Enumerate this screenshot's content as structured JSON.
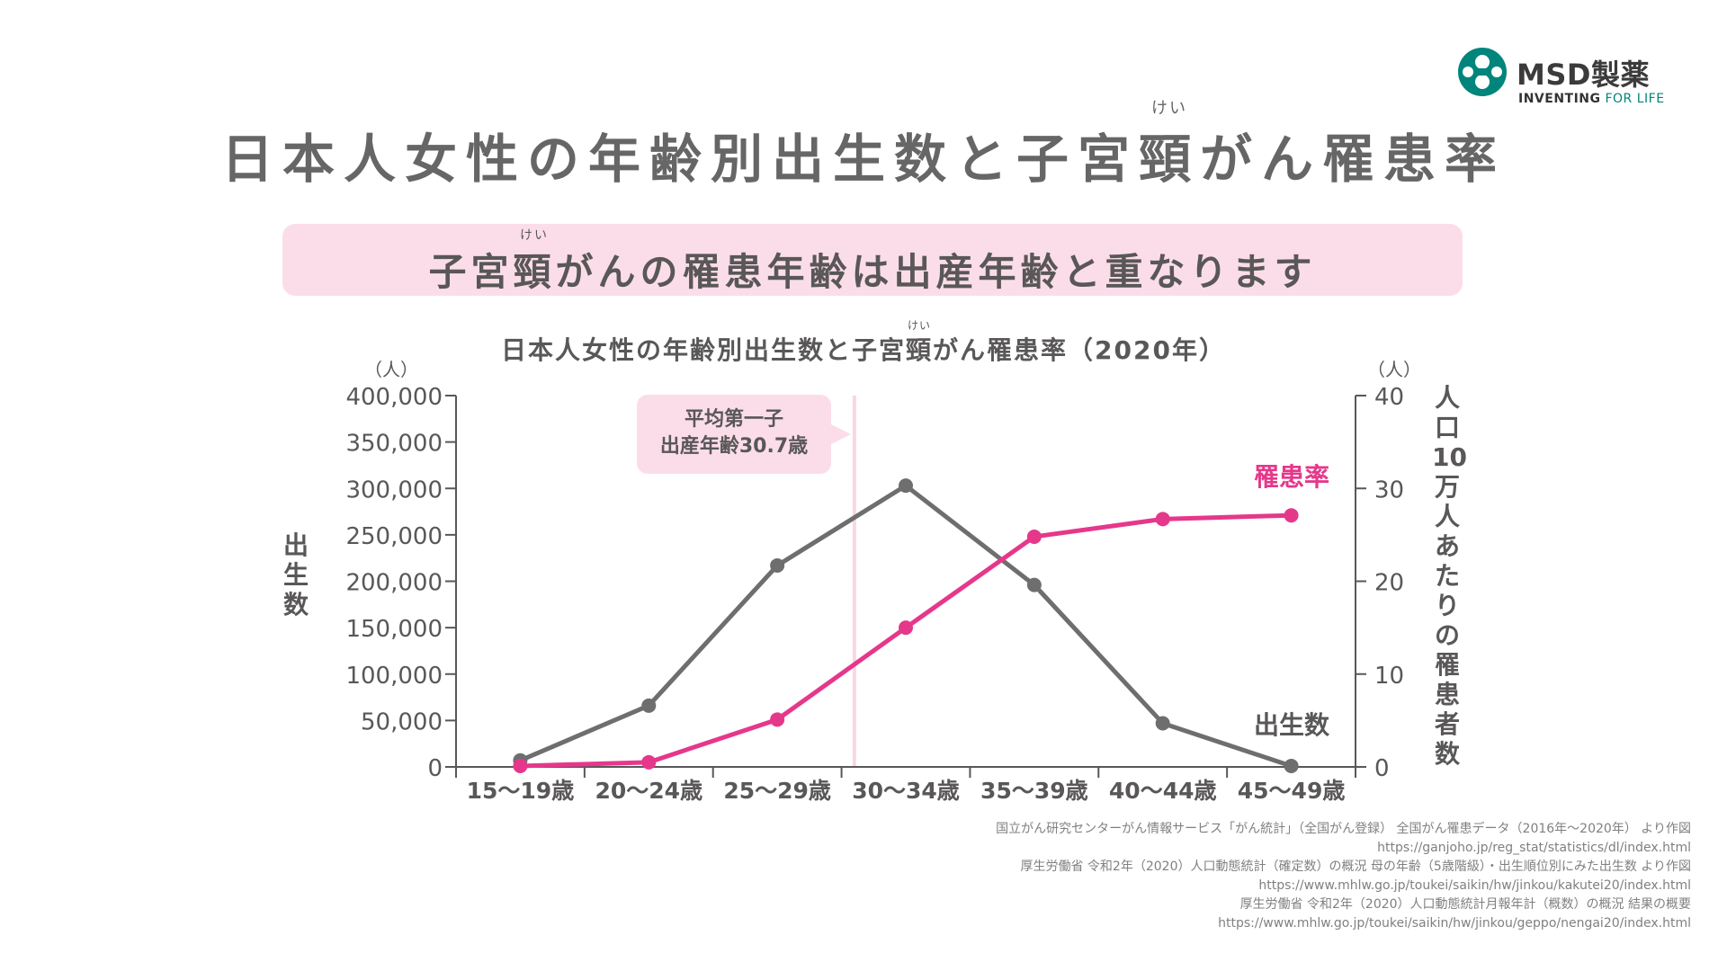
{
  "brand": {
    "name": "MSD製薬",
    "tagline_strong": "INVENTING",
    "tagline_rest": " FOR LIFE",
    "color": "#00857c"
  },
  "title": {
    "before": "日本人女性の年齢別出生数と子宮",
    "ruby_base": "頸",
    "ruby_text": "けい",
    "after": "がん罹患率"
  },
  "banner": {
    "before": "子宮",
    "ruby_base": "頸",
    "ruby_text": "けい",
    "after": "がんの罹患年齢は出産年齢と重なります"
  },
  "chart_title": {
    "before": "日本人女性の年齢別出生数と子宮",
    "ruby_base": "頸",
    "ruby_text": "けい",
    "after": "がん罹患率（2020年）"
  },
  "callout": {
    "line1": "平均第一子",
    "line2": "出産年齢30.7歳"
  },
  "left_axis_title": [
    "出",
    "生",
    "数"
  ],
  "right_axis_title": [
    "人",
    "口",
    "10",
    "万",
    "人",
    "あ",
    "た",
    "り",
    "の",
    "罹",
    "患",
    "者",
    "数"
  ],
  "chart_data": {
    "type": "line",
    "categories": [
      "15～19歳",
      "20～24歳",
      "25～29歳",
      "30～34歳",
      "35～39歳",
      "40～44歳",
      "45～49歳"
    ],
    "y_left": {
      "label": "出生数",
      "unit": "（人）",
      "range": [
        0,
        400000
      ],
      "ticks": [
        "0",
        "50,000",
        "100,000",
        "150,000",
        "200,000",
        "250,000",
        "300,000",
        "350,000",
        "400,000"
      ]
    },
    "y_right": {
      "label": "人口10万人あたりの罹患者数",
      "unit": "（人）",
      "range": [
        0,
        40
      ],
      "ticks": [
        "0",
        "10",
        "20",
        "30",
        "40"
      ]
    },
    "series": [
      {
        "name": "出生数",
        "axis": "left",
        "color": "#6e6e6e",
        "values": [
          7000,
          66000,
          217000,
          303000,
          196000,
          47000,
          1000
        ]
      },
      {
        "name": "罹患率",
        "axis": "right",
        "color": "#e5388b",
        "values": [
          0.1,
          0.5,
          5.1,
          15.0,
          24.8,
          26.7,
          27.1
        ]
      }
    ],
    "marker": {
      "label": "平均第一子出産年齢30.7歳",
      "position_category": 2.6,
      "color": "#f9d6e5"
    }
  },
  "sources": [
    "国立がん研究センターがん情報サービス「がん統計」（全国がん登録） 全国がん罹患データ（2016年～2020年） より作図",
    "https://ganjoho.jp/reg_stat/statistics/dl/index.html",
    "厚生労働省 令和2年（2020）人口動態統計（確定数）の概況 母の年齢（5歳階級）・出生順位別にみた出生数 より作図",
    "https://www.mhlw.go.jp/toukei/saikin/hw/jinkou/kakutei20/index.html",
    "厚生労働省 令和2年（2020）人口動態統計月報年計（概数）の概況 結果の概要",
    "https://www.mhlw.go.jp/toukei/saikin/hw/jinkou/geppo/nengai20/index.html"
  ]
}
